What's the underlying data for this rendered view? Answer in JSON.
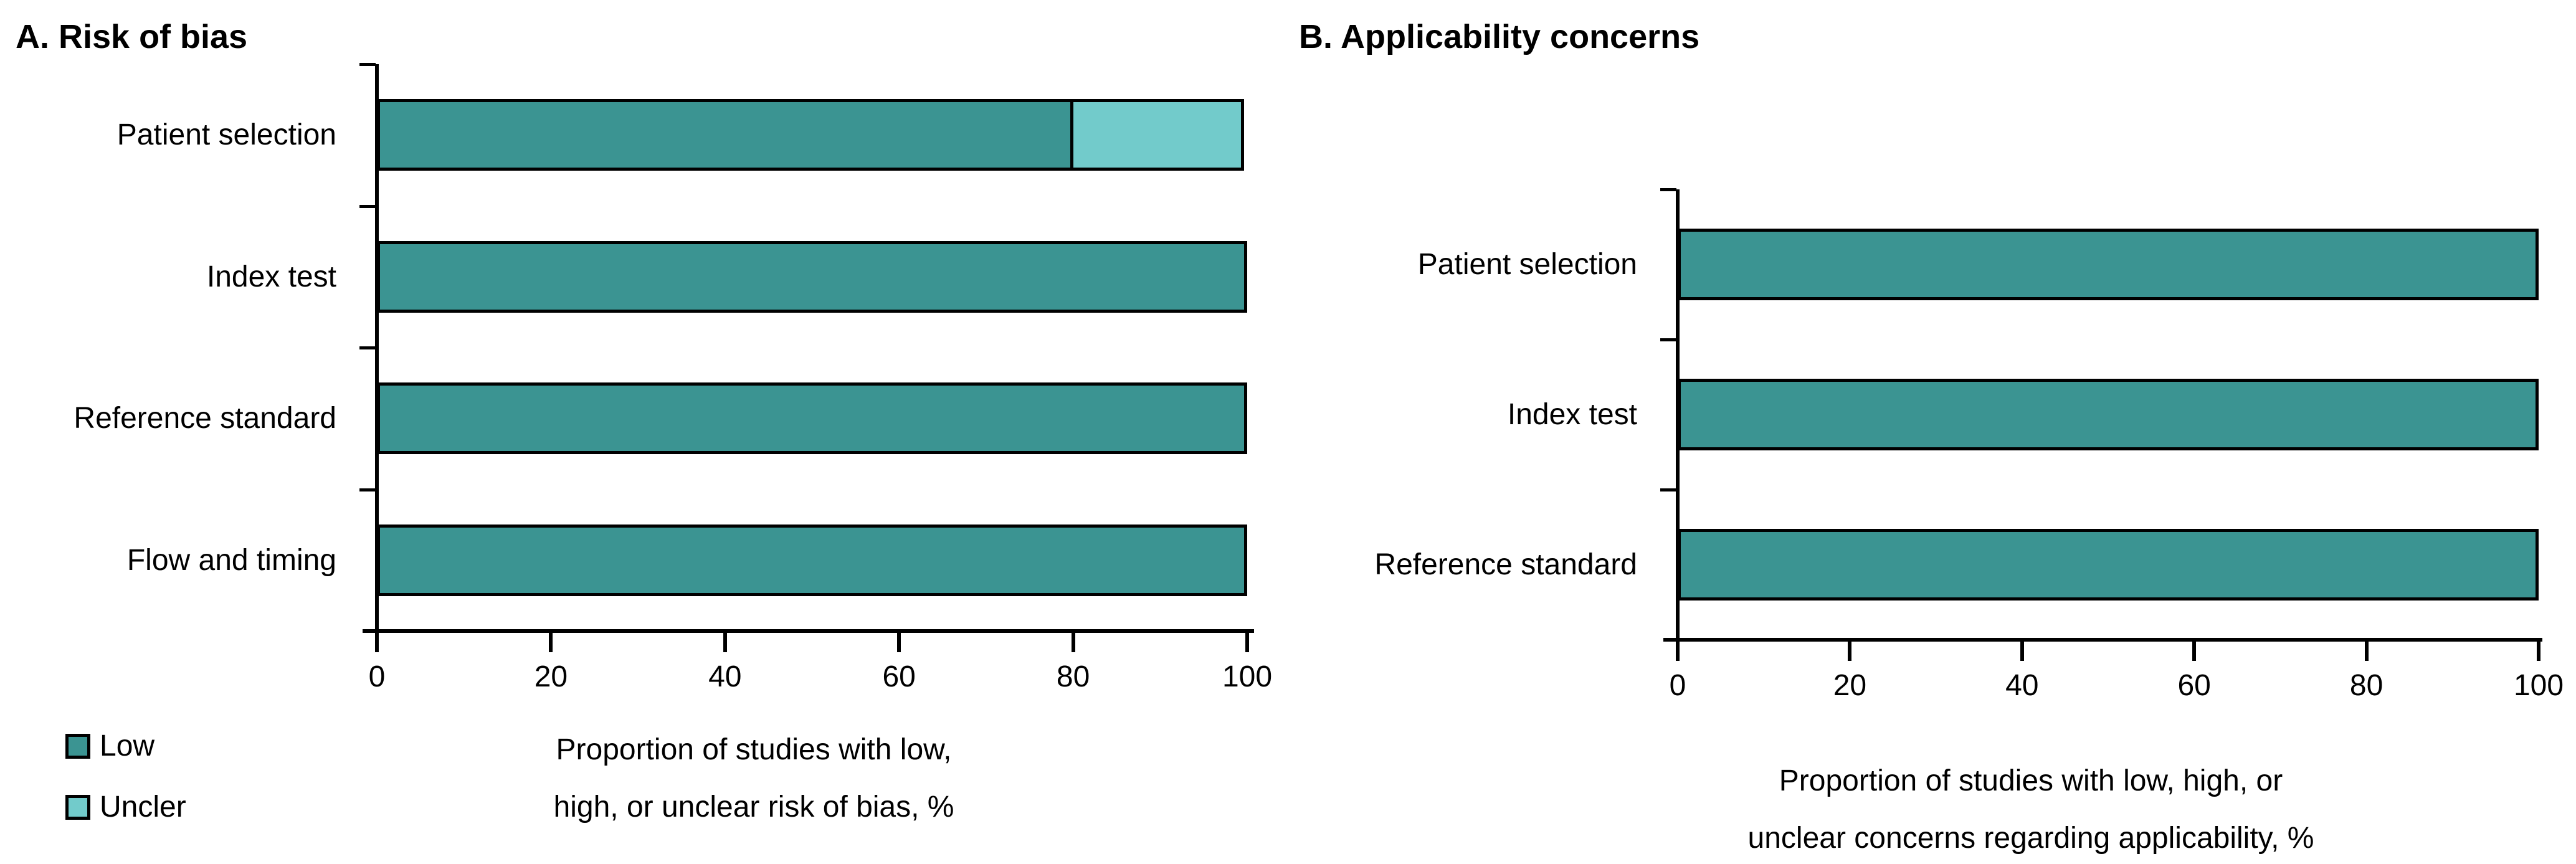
{
  "figure": {
    "kind": "QUADAS-2 methodological quality summary",
    "background": "#ffffff",
    "text_color": "#000000",
    "bar_border_color": "#000000"
  },
  "colors": {
    "low": "#3B9492",
    "unclear": "#72CBCB"
  },
  "chart_data": [
    {
      "type": "bar",
      "orientation": "horizontal",
      "stacked": true,
      "title": "A. Risk of bias",
      "categories": [
        "Patient selection",
        "Index test",
        "Reference standard",
        "Flow and timing"
      ],
      "series": [
        {
          "name": "Low",
          "color": "#3B9492",
          "values": [
            80,
            100,
            100,
            100
          ]
        },
        {
          "name": "Uncler",
          "color": "#72CBCB",
          "values": [
            20,
            0,
            0,
            0
          ]
        }
      ],
      "x_ticks": [
        0,
        20,
        40,
        60,
        80,
        100
      ],
      "xlim": [
        0,
        100
      ],
      "grid": false,
      "xlabel_lines": [
        "Proportion of studies with low,",
        "high, or unclear risk of bias, %"
      ],
      "legend": {
        "position": "bottom-left",
        "items": [
          {
            "label": "Low",
            "color": "#3B9492"
          },
          {
            "label": "Uncler",
            "color": "#72CBCB"
          }
        ]
      }
    },
    {
      "type": "bar",
      "orientation": "horizontal",
      "stacked": true,
      "title": "B. Applicability concerns",
      "categories": [
        "Patient selection",
        "Index test",
        "Reference standard"
      ],
      "series": [
        {
          "name": "Low",
          "color": "#3B9492",
          "values": [
            100,
            100,
            100
          ]
        }
      ],
      "x_ticks": [
        0,
        20,
        40,
        60,
        80,
        100
      ],
      "xlim": [
        0,
        100
      ],
      "grid": false,
      "xlabel_lines": [
        "Proportion of studies with low, high, or",
        "unclear concerns regarding applicability, %"
      ]
    }
  ]
}
